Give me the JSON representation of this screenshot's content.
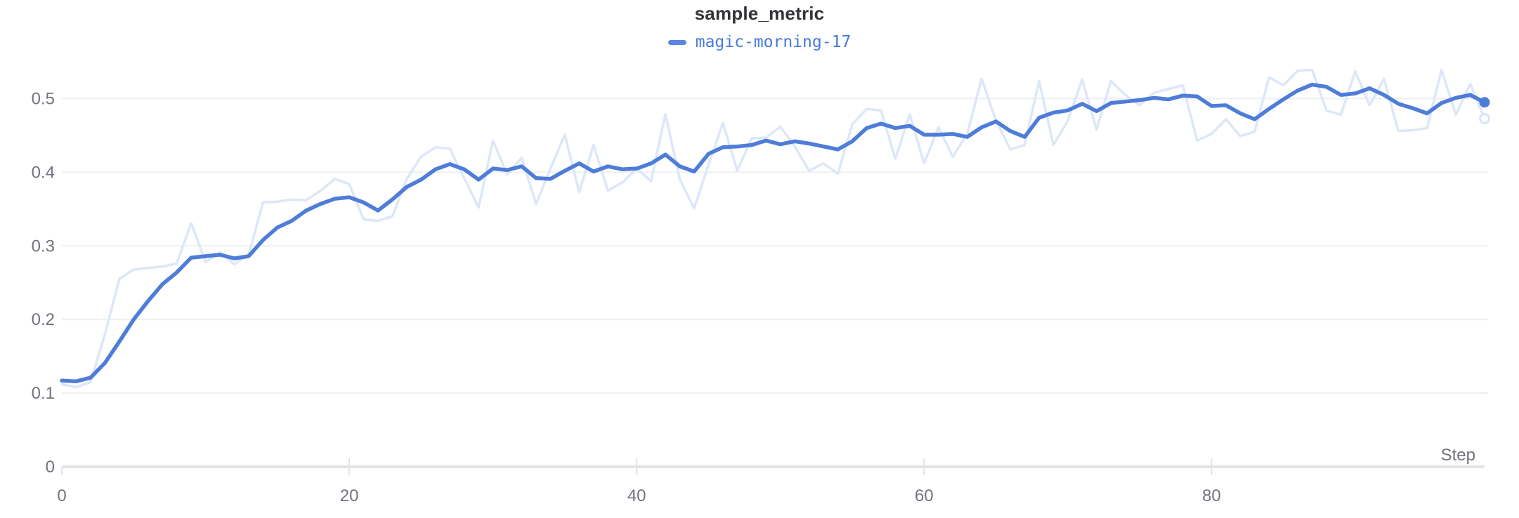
{
  "chart": {
    "title": "sample_metric",
    "legend": {
      "label": "magic-morning-17",
      "swatch_color": "#5a88e0",
      "label_color": "#4679db"
    }
  },
  "chart_data": {
    "type": "line",
    "title": "sample_metric",
    "xlabel": "Step",
    "ylabel": "",
    "x_range": [
      0,
      99
    ],
    "ylim": [
      0,
      0.55
    ],
    "x_ticks": [
      0,
      20,
      40,
      60,
      80
    ],
    "x_tick_labels": [
      "0",
      "20",
      "40",
      "60",
      "80"
    ],
    "y_ticks": [
      0,
      0.1,
      0.2,
      0.3,
      0.4,
      0.5
    ],
    "y_tick_labels": [
      "0",
      "0.1",
      "0.2",
      "0.3",
      "0.4",
      "0.5"
    ],
    "grid": "horizontal",
    "legend_position": "top-center",
    "colors": {
      "grid_line": "#efeff2",
      "axis_line": "#e4e4e8",
      "tick_label": "#73737e",
      "raw_series": "#dde7f8",
      "smoothed_series": "#4e7cd9",
      "raw_end_dot_stroke": "#d9e4f7",
      "raw_end_dot_fill": "#ffffff"
    },
    "series": [
      {
        "name": "magic-morning-17 (original)",
        "role": "raw",
        "color": "#dde7f8",
        "values": [
          0.112,
          0.108,
          0.115,
          0.18,
          0.255,
          0.268,
          0.27,
          0.272,
          0.276,
          0.331,
          0.278,
          0.291,
          0.275,
          0.288,
          0.359,
          0.36,
          0.363,
          0.362,
          0.375,
          0.391,
          0.384,
          0.336,
          0.334,
          0.34,
          0.391,
          0.421,
          0.434,
          0.432,
          0.392,
          0.352,
          0.443,
          0.397,
          0.42,
          0.357,
          0.405,
          0.451,
          0.373,
          0.437,
          0.375,
          0.386,
          0.405,
          0.388,
          0.479,
          0.39,
          0.351,
          0.41,
          0.467,
          0.402,
          0.446,
          0.447,
          0.462,
          0.435,
          0.402,
          0.412,
          0.398,
          0.465,
          0.486,
          0.484,
          0.418,
          0.479,
          0.412,
          0.461,
          0.421,
          0.452,
          0.527,
          0.47,
          0.431,
          0.437,
          0.524,
          0.437,
          0.47,
          0.526,
          0.458,
          0.524,
          0.505,
          0.491,
          0.508,
          0.513,
          0.518,
          0.443,
          0.452,
          0.472,
          0.449,
          0.455,
          0.529,
          0.518,
          0.538,
          0.539,
          0.484,
          0.478,
          0.537,
          0.491,
          0.527,
          0.456,
          0.457,
          0.46,
          0.539,
          0.478,
          0.52,
          0.473
        ]
      },
      {
        "name": "magic-morning-17",
        "role": "smoothed",
        "color": "#4e7cd9",
        "values": [
          0.117,
          0.116,
          0.121,
          0.141,
          0.17,
          0.2,
          0.225,
          0.248,
          0.264,
          0.284,
          0.286,
          0.288,
          0.283,
          0.286,
          0.308,
          0.325,
          0.334,
          0.348,
          0.357,
          0.364,
          0.366,
          0.359,
          0.348,
          0.363,
          0.38,
          0.39,
          0.404,
          0.411,
          0.404,
          0.39,
          0.405,
          0.403,
          0.408,
          0.392,
          0.391,
          0.402,
          0.412,
          0.401,
          0.408,
          0.404,
          0.405,
          0.412,
          0.424,
          0.408,
          0.401,
          0.425,
          0.434,
          0.435,
          0.437,
          0.443,
          0.438,
          0.442,
          0.439,
          0.435,
          0.431,
          0.442,
          0.46,
          0.466,
          0.46,
          0.463,
          0.451,
          0.451,
          0.452,
          0.448,
          0.461,
          0.469,
          0.456,
          0.448,
          0.474,
          0.481,
          0.484,
          0.493,
          0.483,
          0.494,
          0.496,
          0.498,
          0.501,
          0.499,
          0.504,
          0.503,
          0.49,
          0.491,
          0.48,
          0.472,
          0.486,
          0.499,
          0.511,
          0.519,
          0.516,
          0.505,
          0.507,
          0.514,
          0.505,
          0.493,
          0.487,
          0.48,
          0.494,
          0.501,
          0.505,
          0.495
        ]
      }
    ]
  }
}
